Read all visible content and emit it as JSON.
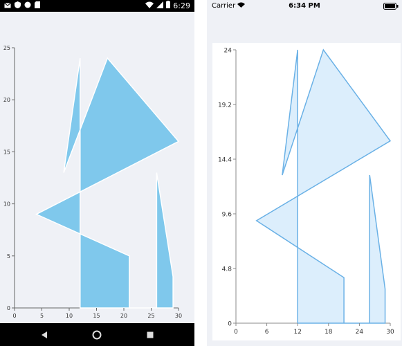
{
  "android": {
    "status": {
      "time": "6:29",
      "icons_left": [
        "mail-icon",
        "shield-icon",
        "circle-icon",
        "sd-card-icon"
      ],
      "icons_right": [
        "wifi-icon",
        "signal-icon",
        "battery-icon"
      ]
    },
    "chart_data": {
      "type": "area",
      "x": [
        12,
        9,
        17,
        30,
        4,
        21,
        21,
        26,
        26,
        29
      ],
      "y": [
        24,
        13,
        24,
        16,
        9,
        5,
        0,
        0,
        13,
        3
      ],
      "xlim": [
        0,
        30
      ],
      "ylim": [
        0,
        25
      ],
      "xticks": [
        "0",
        "5",
        "10",
        "15",
        "20",
        "25",
        "30"
      ],
      "yticks": [
        "0",
        "5",
        "10",
        "15",
        "20",
        "25"
      ],
      "fill": "#7fc8ec",
      "stroke": "#ffffff"
    },
    "nav": [
      "back-icon",
      "home-icon",
      "recents-icon"
    ]
  },
  "ios": {
    "status": {
      "carrier": "Carrier",
      "time": "6:34 PM"
    },
    "chart_data": {
      "type": "area",
      "x": [
        12,
        9,
        17,
        30,
        4,
        21,
        21,
        26,
        26,
        29
      ],
      "y": [
        24,
        13,
        24,
        16,
        9,
        4,
        0,
        0,
        13,
        3
      ],
      "xlim": [
        0,
        30
      ],
      "ylim": [
        0,
        24
      ],
      "xticks": [
        "0",
        "6",
        "12",
        "18",
        "24",
        "30"
      ],
      "yticks": [
        "0",
        "4.8",
        "9.6",
        "14.4",
        "19.2",
        "24"
      ],
      "fill": "#dceefc",
      "stroke": "#6ab1e6"
    }
  }
}
